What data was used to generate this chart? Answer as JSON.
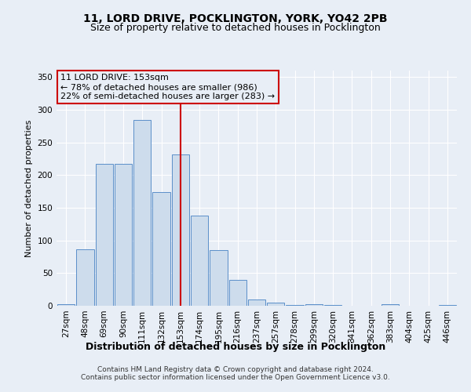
{
  "title1": "11, LORD DRIVE, POCKLINGTON, YORK, YO42 2PB",
  "title2": "Size of property relative to detached houses in Pocklington",
  "xlabel": "Distribution of detached houses by size in Pocklington",
  "ylabel": "Number of detached properties",
  "categories": [
    "27sqm",
    "48sqm",
    "69sqm",
    "90sqm",
    "111sqm",
    "132sqm",
    "153sqm",
    "174sqm",
    "195sqm",
    "216sqm",
    "237sqm",
    "257sqm",
    "278sqm",
    "299sqm",
    "320sqm",
    "341sqm",
    "362sqm",
    "383sqm",
    "404sqm",
    "425sqm",
    "446sqm"
  ],
  "values": [
    3,
    86,
    217,
    217,
    284,
    174,
    232,
    138,
    85,
    40,
    10,
    5,
    1,
    3,
    1,
    0,
    0,
    2,
    0,
    0,
    1
  ],
  "highlight_index": 6,
  "bar_color": "#cddcec",
  "bar_edge_color": "#5b8fc9",
  "highlight_line_color": "#cc0000",
  "box_edge_color": "#cc0000",
  "background_color": "#e8eef6",
  "plot_bg_color": "#e8eef6",
  "annotation_line1": "11 LORD DRIVE: 153sqm",
  "annotation_line2": "← 78% of detached houses are smaller (986)",
  "annotation_line3": "22% of semi-detached houses are larger (283) →",
  "footer1": "Contains HM Land Registry data © Crown copyright and database right 2024.",
  "footer2": "Contains public sector information licensed under the Open Government Licence v3.0.",
  "ylim": [
    0,
    360
  ],
  "yticks": [
    0,
    50,
    100,
    150,
    200,
    250,
    300,
    350
  ],
  "title1_fontsize": 10,
  "title2_fontsize": 9,
  "xlabel_fontsize": 9,
  "ylabel_fontsize": 8,
  "tick_fontsize": 7.5,
  "annotation_fontsize": 8,
  "footer_fontsize": 6.5
}
